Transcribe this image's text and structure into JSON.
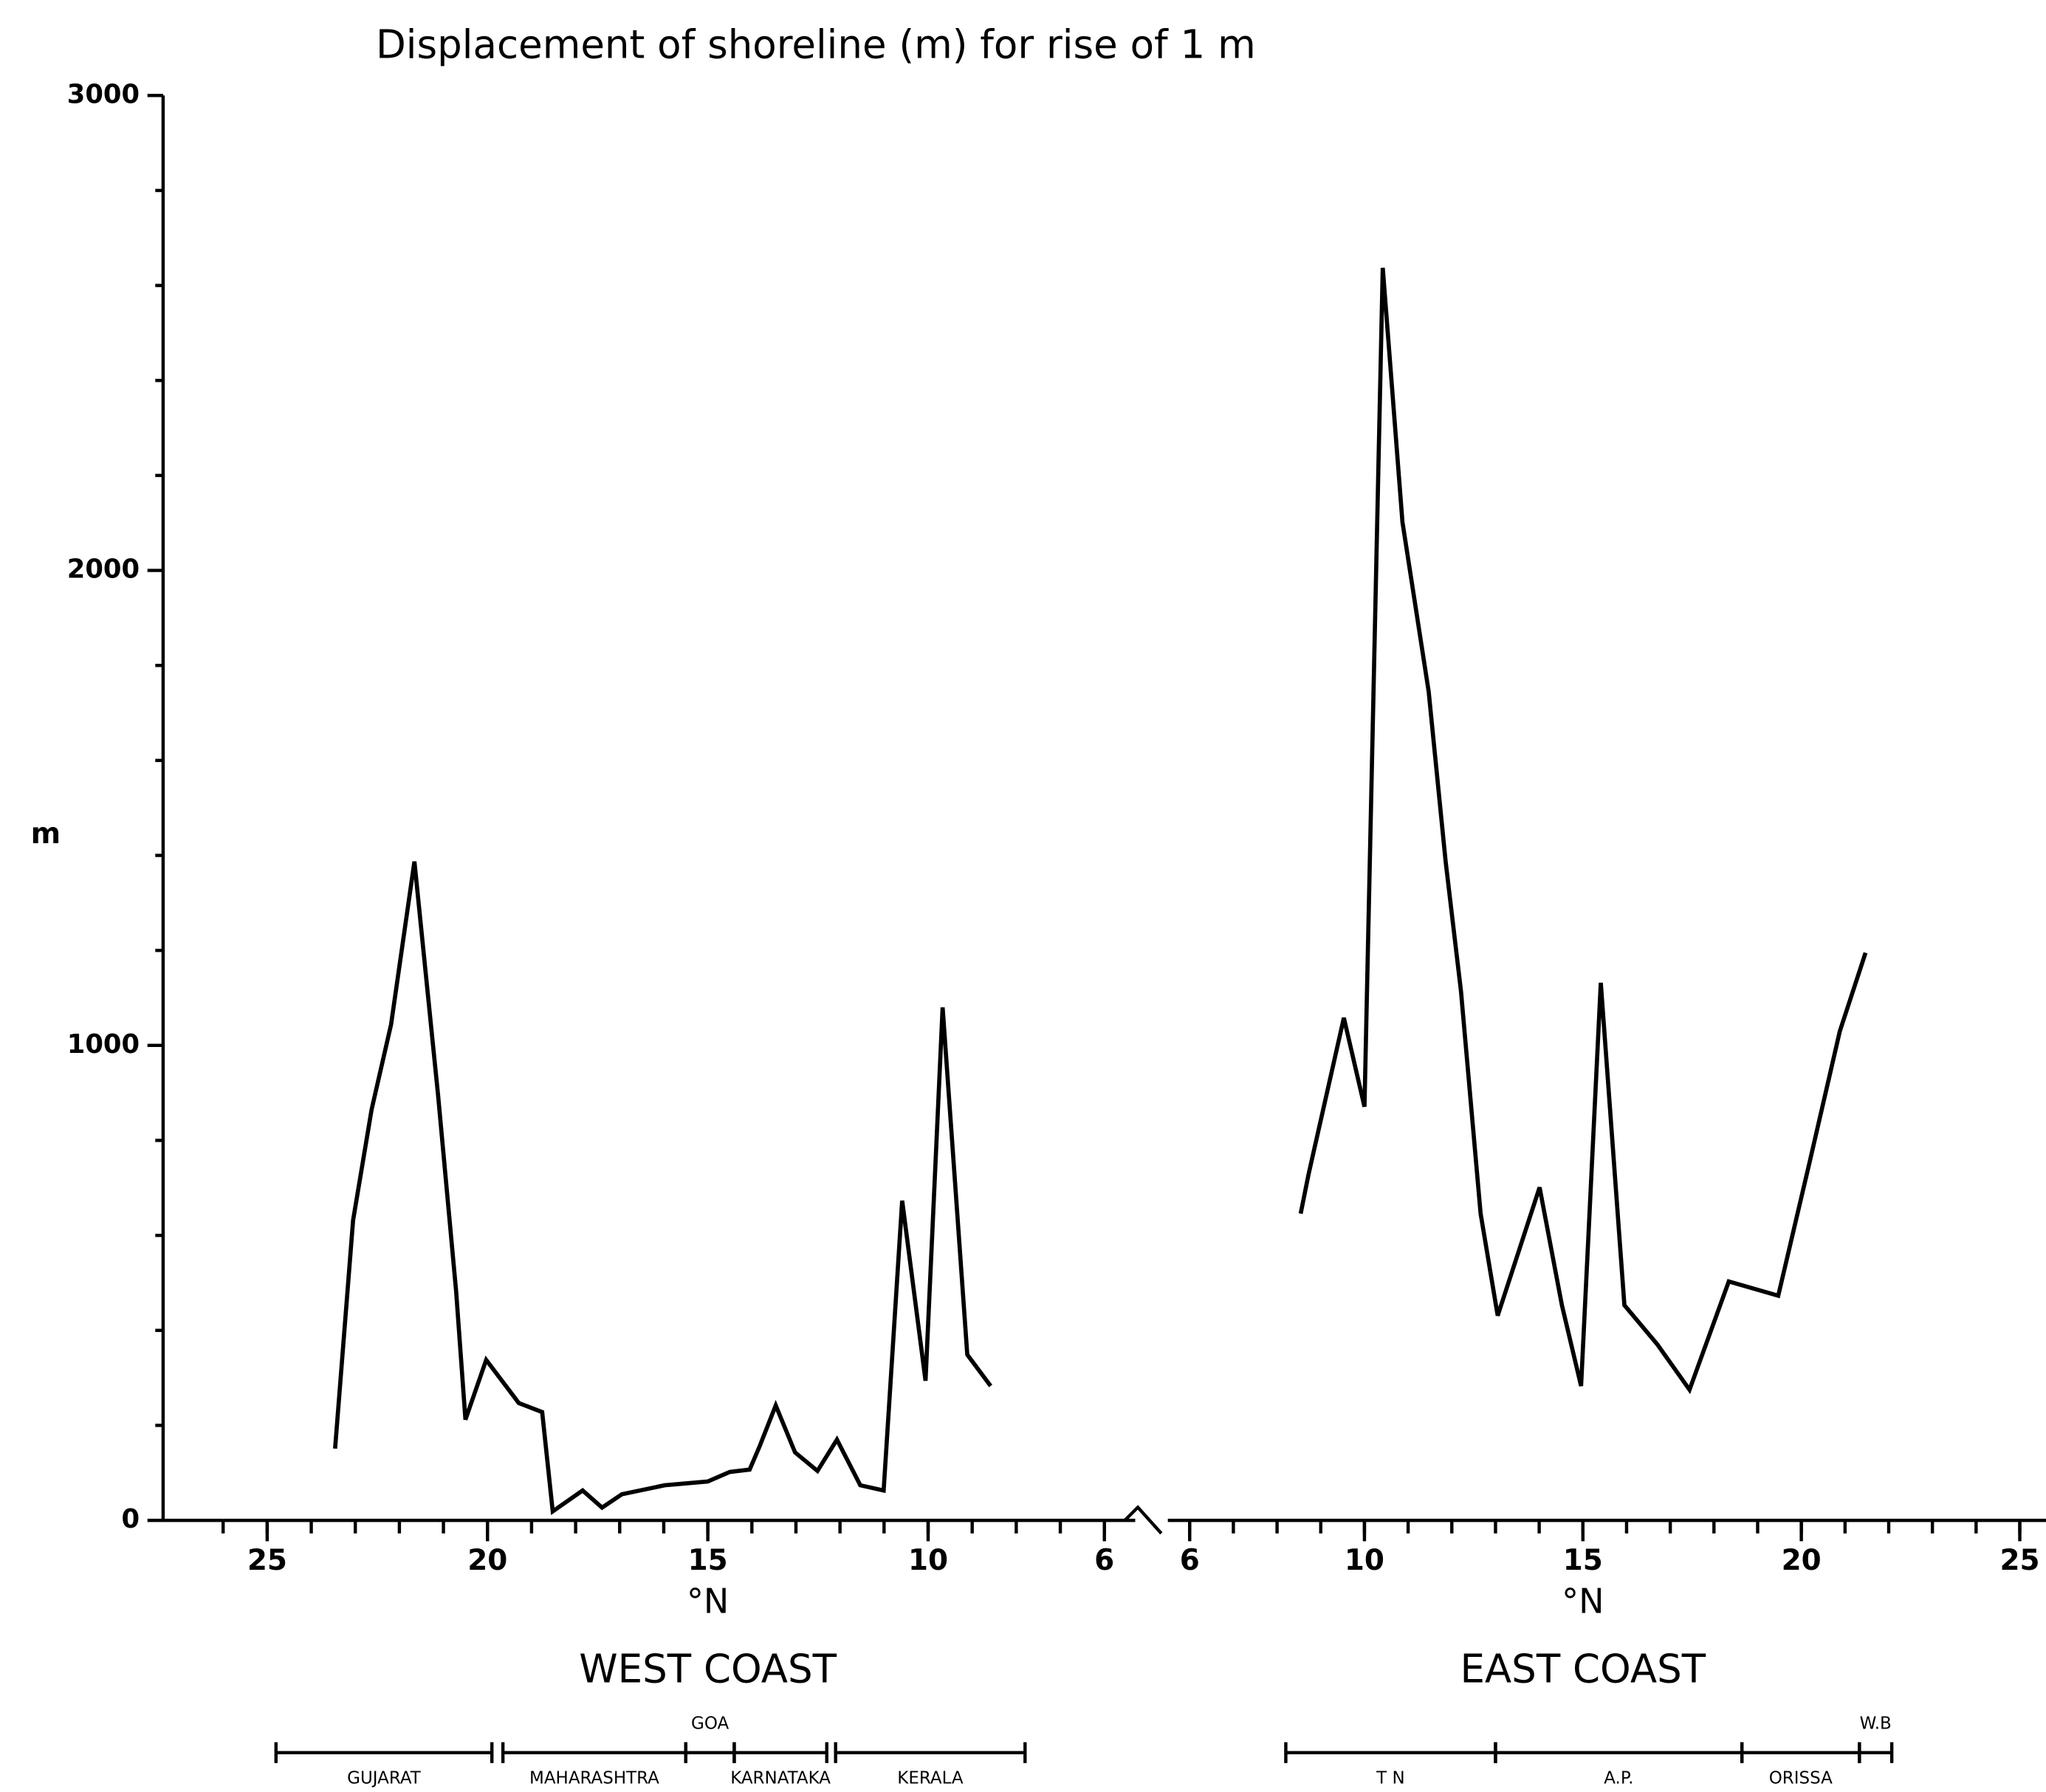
{
  "chart_data": [
    {
      "type": "line",
      "title": "Displacement of shoreline (m) for rise of 1 m",
      "ylabel": "m",
      "xlabel": "°N",
      "panel_label": "WEST COAST",
      "xlim": [
        26,
        5.3
      ],
      "xticks": [
        25,
        20,
        15,
        10,
        6
      ],
      "ylim": [
        0,
        3000
      ],
      "yticks": [
        0,
        1000,
        2000,
        3000
      ],
      "series": [
        {
          "name": "West coast",
          "color": "#000000",
          "x": [
            23.46,
            23.05,
            22.63,
            22.19,
            21.66,
            21.12,
            20.71,
            20.5,
            20.03,
            19.29,
            18.76,
            18.52,
            17.84,
            17.4,
            16.95,
            15.98,
            15.0,
            14.5,
            14.05,
            13.82,
            13.46,
            13.02,
            12.51,
            12.07,
            11.54,
            11.01,
            10.59,
            10.06,
            9.67,
            9.11,
            8.58
          ],
          "values": [
            151,
            632,
            865,
            1044,
            1387,
            893,
            481,
            212,
            338,
            247,
            228,
            19,
            63,
            27,
            55,
            74,
            82,
            102,
            107,
            157,
            242,
            143,
            104,
            170,
            74,
            63,
            673,
            294,
            1080,
            349,
            283
          ]
        }
      ],
      "regions": [
        {
          "name": "GUJARAT",
          "from": 24.8,
          "to": 19.9
        },
        {
          "name": "MAHARASHTRA",
          "from": 19.65,
          "to": 15.5
        },
        {
          "name": "GOA",
          "from": 15.5,
          "to": 14.4
        },
        {
          "name": "KARNATAKA",
          "from": 14.4,
          "to": 12.3
        },
        {
          "name": "KERALA",
          "from": 12.1,
          "to": 7.8
        }
      ]
    },
    {
      "type": "line",
      "xlabel": "°N",
      "panel_label": "EAST COAST",
      "xlim": [
        5.5,
        25.6
      ],
      "xticks": [
        6,
        10,
        15,
        20,
        25
      ],
      "ylim": [
        0,
        3000
      ],
      "series": [
        {
          "name": "East coast",
          "color": "#000000",
          "x": [
            8.54,
            8.72,
            9.53,
            10.0,
            10.42,
            10.87,
            11.47,
            11.86,
            12.21,
            12.66,
            13.05,
            14.01,
            14.52,
            14.96,
            15.41,
            15.95,
            16.7,
            17.44,
            18.34,
            19.47,
            20.19,
            20.88,
            21.47
          ],
          "values": [
            646,
            728,
            1058,
            871,
            2637,
            2102,
            1745,
            1387,
            1113,
            646,
            431,
            701,
            453,
            283,
            1132,
            453,
            371,
            275,
            503,
            473,
            755,
            1030,
            1195
          ]
        }
      ],
      "regions": [
        {
          "name": "T N",
          "from": 8.2,
          "to": 13.0
        },
        {
          "name": "A.P.",
          "from": 13.0,
          "to": 18.64
        },
        {
          "name": "ORISSA",
          "from": 18.64,
          "to": 21.33
        },
        {
          "name": "W.B",
          "from": 21.33,
          "to": 22.07
        }
      ]
    }
  ]
}
